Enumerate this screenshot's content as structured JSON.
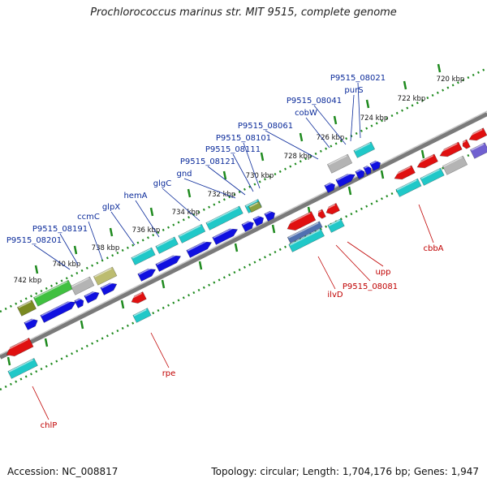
{
  "title": "Prochlorococcus marinus str. MIT 9515, complete genome",
  "footer": {
    "accession": "Accession: NC_008817",
    "stats": "Topology: circular; Length: 1,704,176 bp; Genes: 1,947"
  },
  "colors": {
    "backbone": "#8a8a8a",
    "tick": "#1e8a1e",
    "label_forward": "#0a2a9a",
    "label_reverse": "#c00000",
    "cds_forward": "#1010e0",
    "cds_reverse": "#e01010",
    "rna_cyan": "#20c8c8",
    "gray": "#b4b4b4",
    "olive": "#bcbc70",
    "green": "#40c040",
    "purple": "#7060d0"
  },
  "kbp_ticks": [
    "720 kbp",
    "722 kbp",
    "724 kbp",
    "726 kbp",
    "728 kbp",
    "730 kbp",
    "732 kbp",
    "734 kbp",
    "736 kbp",
    "738 kbp",
    "740 kbp",
    "742 kbp"
  ],
  "genes_forward": [
    "P9515_08021",
    "purS",
    "P9515_08041",
    "cobW",
    "P9515_08061",
    "P9515_08101",
    "P9515_08111",
    "P9515_08121",
    "gnd",
    "glgC",
    "hemA",
    "glpX",
    "ccmC",
    "P9515_08191",
    "P9515_08201"
  ],
  "genes_reverse": [
    "cbbA",
    "upp",
    "P9515_08081",
    "ilvD",
    "rpe",
    "chlP"
  ]
}
